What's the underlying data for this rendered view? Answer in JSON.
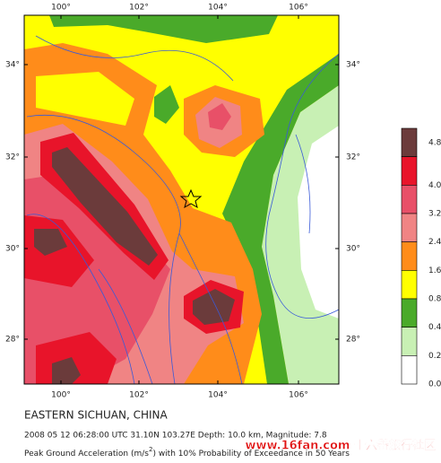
{
  "map": {
    "lon_labels": [
      "100°",
      "102°",
      "104°",
      "106°"
    ],
    "lat_labels": [
      "34°",
      "32°",
      "30°",
      "28°"
    ],
    "legend": [
      {
        "label": "4.8",
        "color": "#6b3b3b"
      },
      {
        "label": "4.0",
        "color": "#e8142a"
      },
      {
        "label": "3.2",
        "color": "#e85068"
      },
      {
        "label": "2.4",
        "color": "#f08484"
      },
      {
        "label": "1.6",
        "color": "#ff8c1a"
      },
      {
        "label": "0.8",
        "color": "#ffff00"
      },
      {
        "label": "0.4",
        "color": "#4aaa2a"
      },
      {
        "label": "0.2",
        "color": "#c8f0b4"
      },
      {
        "label": "0.0",
        "color": "#ffffff"
      }
    ],
    "title": "EASTERN SICHUAN, CHINA",
    "event": "2008 05 12 06:28:00 UTC 31.10N 103.27E Depth: 10.0 km, Magnitude: 7.8",
    "caption": [
      "Peak Ground Acceleration (m/s",
      "2",
      ") with 10% Probability of Exceedance in 50 Years"
    ],
    "watermark": "www.16fan.com 十六番旅行社区"
  }
}
